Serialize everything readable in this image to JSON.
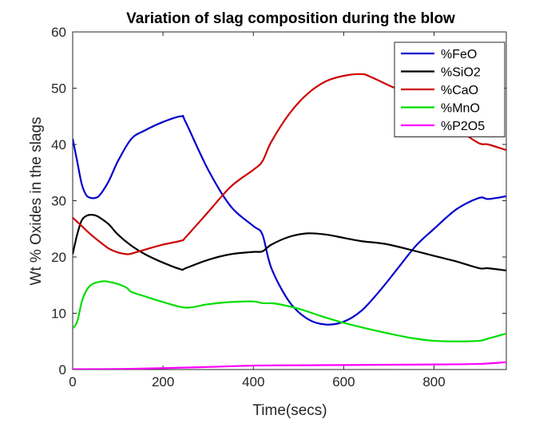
{
  "chart_data": {
    "type": "line",
    "title": "Variation of slag composition during the blow",
    "xlabel": "Time(secs)",
    "ylabel": "Wt % Oxides in the slags",
    "xlim": [
      0,
      960
    ],
    "ylim": [
      0,
      60
    ],
    "xticks": [
      0,
      200,
      400,
      600,
      800
    ],
    "yticks": [
      0,
      10,
      20,
      30,
      40,
      50,
      60
    ],
    "xtick_labels": [
      "0",
      "200",
      "400",
      "600",
      "800"
    ],
    "ytick_labels": [
      "0",
      "10",
      "20",
      "30",
      "40",
      "50",
      "60"
    ],
    "grid": false,
    "legend_position": "top-right",
    "series": [
      {
        "name": "%FeO",
        "color": "#0000cc",
        "x": [
          0,
          10,
          20,
          30,
          40,
          50,
          60,
          80,
          100,
          130,
          160,
          200,
          240,
          250,
          300,
          350,
          400,
          420,
          440,
          480,
          520,
          560,
          600,
          640,
          680,
          720,
          760,
          800,
          850,
          900,
          920,
          960
        ],
        "y": [
          41,
          37,
          33,
          31,
          30.5,
          30.5,
          31,
          33.5,
          37,
          41,
          42.5,
          44,
          45,
          44,
          35.5,
          29,
          25.5,
          24,
          18,
          12,
          9,
          8,
          8.5,
          10.5,
          14,
          18,
          22,
          25,
          28.5,
          30.5,
          30.3,
          30.8
        ]
      },
      {
        "name": "%SiO2",
        "color": "#000000",
        "x": [
          0,
          10,
          20,
          30,
          40,
          50,
          60,
          80,
          100,
          130,
          160,
          200,
          240,
          250,
          300,
          350,
          400,
          420,
          440,
          480,
          520,
          560,
          600,
          640,
          700,
          800,
          850,
          900,
          920,
          960
        ],
        "y": [
          20.5,
          24,
          26.5,
          27.3,
          27.5,
          27.4,
          27,
          25.8,
          24,
          22,
          20.5,
          19,
          17.8,
          18,
          19.5,
          20.5,
          20.9,
          21,
          22.2,
          23.6,
          24.2,
          24,
          23.4,
          22.8,
          22.2,
          20.2,
          19.2,
          18,
          18,
          17.6
        ]
      },
      {
        "name": "%CaO",
        "color": "#cc0000",
        "x": [
          0,
          20,
          40,
          60,
          80,
          100,
          120,
          130,
          160,
          200,
          240,
          250,
          300,
          350,
          400,
          420,
          440,
          480,
          520,
          560,
          600,
          640,
          660,
          700,
          740,
          780,
          820,
          860,
          900,
          920,
          960
        ],
        "y": [
          27,
          25.5,
          24,
          22.7,
          21.5,
          20.8,
          20.5,
          20.6,
          21.3,
          22.2,
          22.9,
          23.5,
          28,
          32.5,
          35.5,
          37,
          40.5,
          45.5,
          49,
          51.2,
          52.2,
          52.5,
          52,
          50.5,
          49,
          46.5,
          43.8,
          42.2,
          40.2,
          40,
          39
        ]
      },
      {
        "name": "%MnO",
        "color": "#00dd00",
        "x": [
          0,
          10,
          20,
          30,
          40,
          50,
          60,
          70,
          80,
          100,
          120,
          130,
          160,
          200,
          250,
          300,
          350,
          400,
          420,
          450,
          500,
          550,
          600,
          650,
          700,
          750,
          800,
          850,
          900,
          920,
          960
        ],
        "y": [
          7.3,
          8.5,
          12,
          14,
          15,
          15.4,
          15.6,
          15.7,
          15.6,
          15.2,
          14.5,
          13.8,
          13,
          12,
          11,
          11.6,
          12,
          12.1,
          11.8,
          11.7,
          10.8,
          9.5,
          8.3,
          7.3,
          6.4,
          5.6,
          5.1,
          5.0,
          5.1,
          5.5,
          6.4
        ]
      },
      {
        "name": "%P2O5",
        "color": "#ff00ff",
        "x": [
          0,
          100,
          200,
          300,
          400,
          500,
          600,
          700,
          800,
          900,
          960
        ],
        "y": [
          0.05,
          0.1,
          0.25,
          0.45,
          0.7,
          0.75,
          0.8,
          0.85,
          0.9,
          1.0,
          1.3
        ]
      }
    ]
  }
}
